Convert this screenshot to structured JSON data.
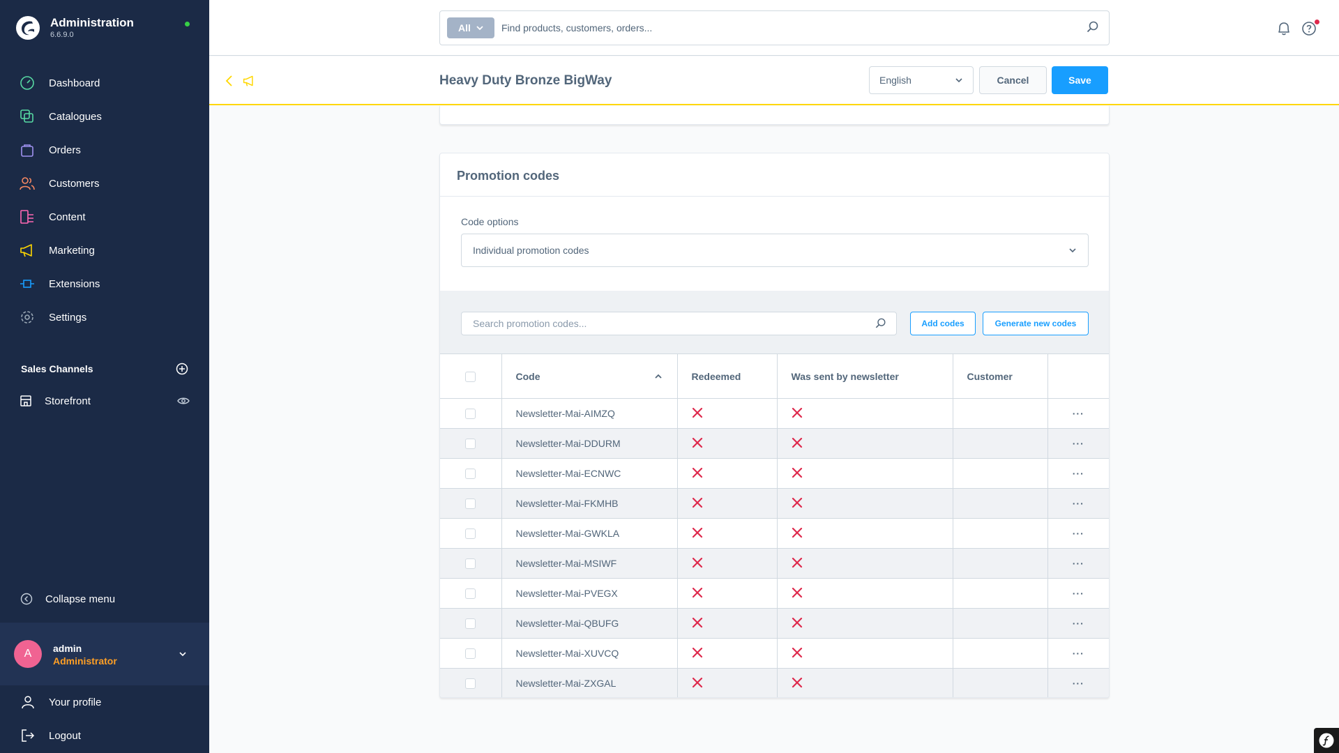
{
  "app": {
    "title": "Administration",
    "version": "6.6.9.0"
  },
  "nav": [
    {
      "label": "Dashboard",
      "icon": "dashboard-icon",
      "color": "#57d9a3"
    },
    {
      "label": "Catalogues",
      "icon": "catalogues-icon",
      "color": "#57d9a3"
    },
    {
      "label": "Orders",
      "icon": "orders-icon",
      "color": "#a092f0"
    },
    {
      "label": "Customers",
      "icon": "customers-icon",
      "color": "#f88962"
    },
    {
      "label": "Content",
      "icon": "content-icon",
      "color": "#ff68b4"
    },
    {
      "label": "Marketing",
      "icon": "marketing-icon",
      "color": "#ffd700"
    },
    {
      "label": "Extensions",
      "icon": "extensions-icon",
      "color": "#189eff"
    },
    {
      "label": "Settings",
      "icon": "settings-icon",
      "color": "#9aa8b5"
    }
  ],
  "sales_channels": {
    "title": "Sales Channels",
    "items": [
      {
        "label": "Storefront"
      }
    ]
  },
  "collapse_label": "Collapse menu",
  "user": {
    "initial": "A",
    "name": "admin",
    "role": "Administrator"
  },
  "bottom_nav": [
    {
      "label": "Your profile"
    },
    {
      "label": "Logout"
    }
  ],
  "search": {
    "type_label": "All",
    "placeholder": "Find products, customers, orders..."
  },
  "smartbar": {
    "title": "Heavy Duty Bronze BigWay",
    "language": "English",
    "cancel_label": "Cancel",
    "save_label": "Save"
  },
  "promotion_codes": {
    "title": "Promotion codes",
    "code_options_label": "Code options",
    "code_options_value": "Individual promotion codes",
    "search_placeholder": "Search promotion codes...",
    "add_codes_label": "Add codes",
    "generate_label": "Generate new codes",
    "columns": [
      "Code",
      "Redeemed",
      "Was sent by newsletter",
      "Customer"
    ],
    "rows": [
      {
        "code": "Newsletter-Mai-AIMZQ",
        "customer": ""
      },
      {
        "code": "Newsletter-Mai-DDURM",
        "customer": ""
      },
      {
        "code": "Newsletter-Mai-ECNWC",
        "customer": ""
      },
      {
        "code": "Newsletter-Mai-FKMHB",
        "customer": ""
      },
      {
        "code": "Newsletter-Mai-GWKLA",
        "customer": ""
      },
      {
        "code": "Newsletter-Mai-MSIWF",
        "customer": ""
      },
      {
        "code": "Newsletter-Mai-PVEGX",
        "customer": ""
      },
      {
        "code": "Newsletter-Mai-QBUFG",
        "customer": ""
      },
      {
        "code": "Newsletter-Mai-XUVCQ",
        "customer": ""
      },
      {
        "code": "Newsletter-Mai-ZXGAL",
        "customer": ""
      }
    ]
  },
  "colors": {
    "sidebar": "#1b2a46",
    "accent": "#189eff",
    "cross": "#de294c",
    "smartbar_border": "#ffd700"
  }
}
